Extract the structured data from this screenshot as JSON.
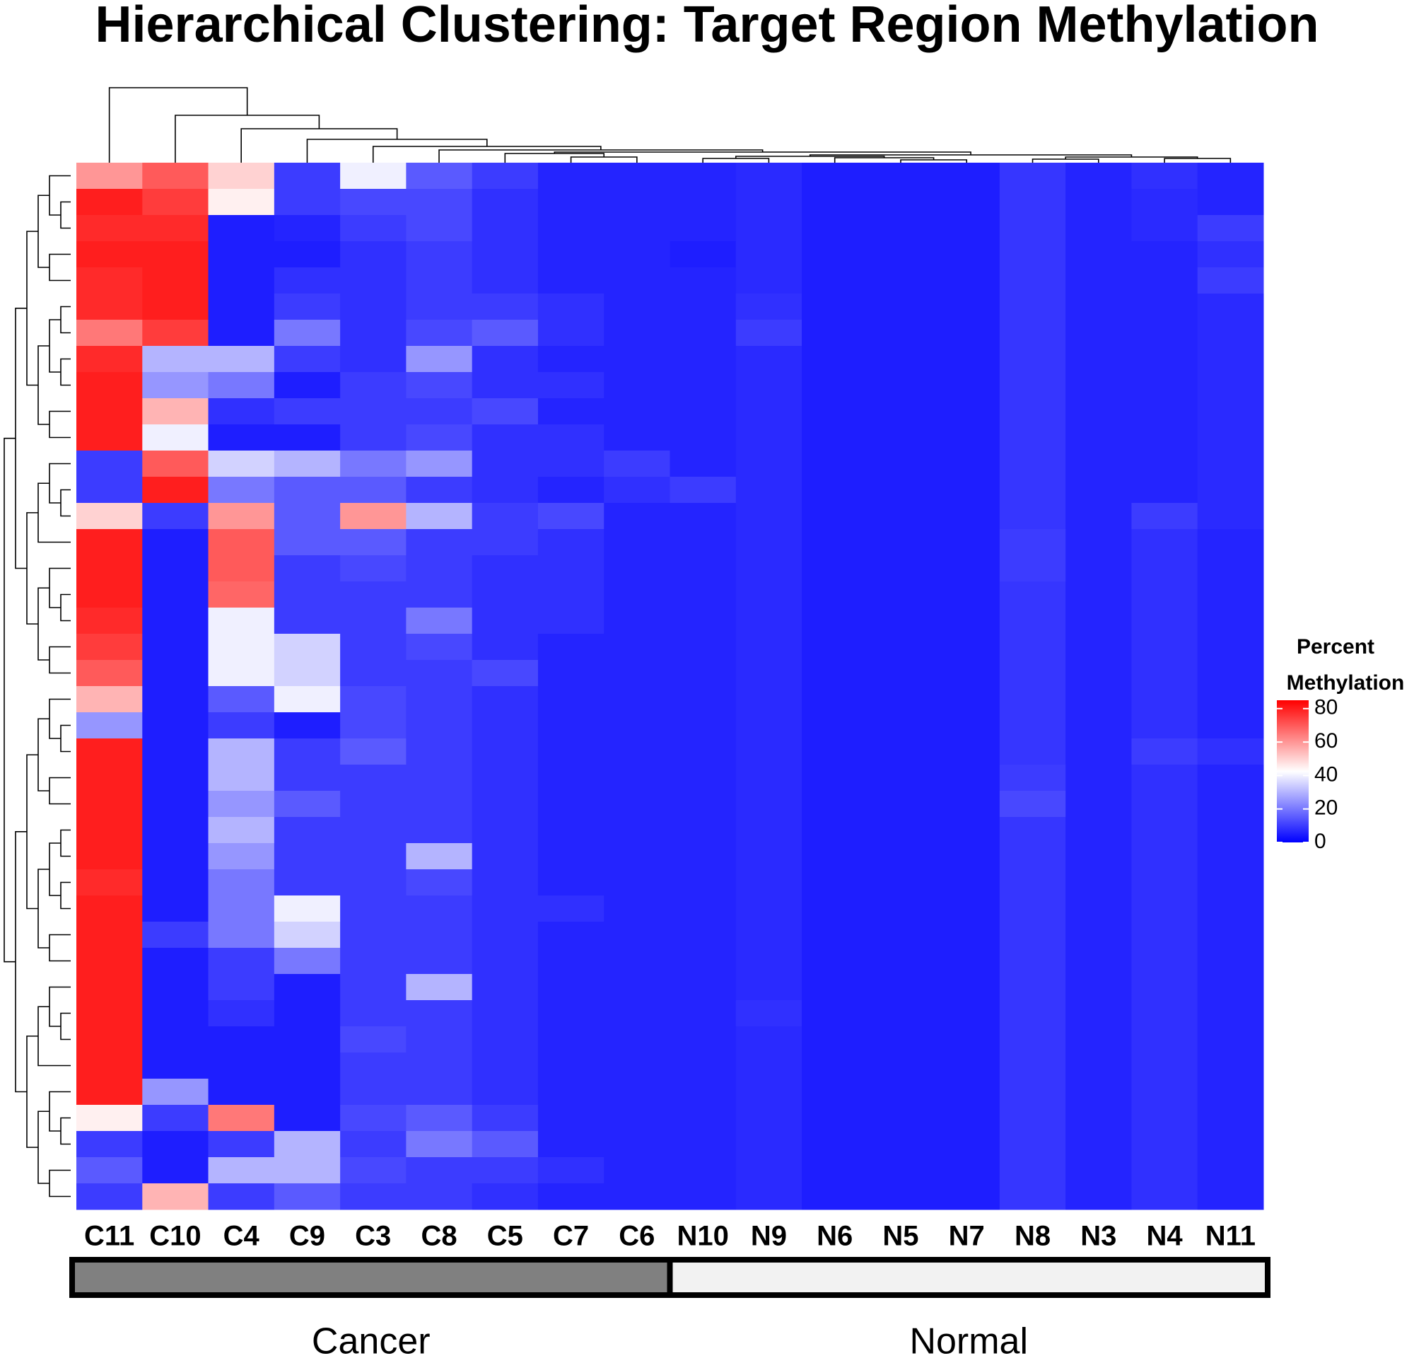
{
  "chart_data": {
    "type": "heatmap",
    "title": "Hierarchical Clustering: Target Region Methylation",
    "categories": [
      "C11",
      "C10",
      "C4",
      "C9",
      "C3",
      "C8",
      "C5",
      "C7",
      "C6",
      "N10",
      "N9",
      "N6",
      "N5",
      "N7",
      "N8",
      "N3",
      "N4",
      "N11"
    ],
    "groups": [
      {
        "label": "Cancer",
        "color": "#808080",
        "size": 9
      },
      {
        "label": "Normal",
        "color": "#f2f2f2",
        "size": 9
      }
    ],
    "legend_title": [
      "Percent",
      "Methylation"
    ],
    "clim": [
      0,
      85
    ],
    "cticks": [
      0,
      20,
      40,
      60,
      80
    ],
    "colors": [
      "#0000ff",
      "#ffffff",
      "#ff0000"
    ],
    "values": [
      [
        60,
        70,
        50,
        10,
        40,
        15,
        10,
        6,
        6,
        6,
        7,
        5,
        5,
        5,
        9,
        6,
        8,
        6
      ],
      [
        80,
        75,
        45,
        10,
        12,
        12,
        8,
        6,
        6,
        6,
        7,
        5,
        5,
        5,
        9,
        6,
        7,
        6
      ],
      [
        78,
        78,
        5,
        6,
        10,
        12,
        8,
        6,
        6,
        6,
        7,
        5,
        5,
        5,
        9,
        6,
        7,
        10
      ],
      [
        80,
        80,
        5,
        5,
        8,
        10,
        8,
        6,
        6,
        5,
        7,
        5,
        5,
        5,
        9,
        6,
        6,
        8
      ],
      [
        78,
        80,
        5,
        8,
        8,
        10,
        8,
        6,
        6,
        6,
        7,
        5,
        5,
        5,
        9,
        6,
        6,
        10
      ],
      [
        78,
        80,
        5,
        10,
        8,
        10,
        10,
        8,
        6,
        6,
        8,
        5,
        5,
        5,
        9,
        6,
        6,
        7
      ],
      [
        65,
        75,
        5,
        20,
        8,
        12,
        15,
        8,
        6,
        6,
        10,
        5,
        5,
        5,
        9,
        6,
        6,
        7
      ],
      [
        78,
        30,
        30,
        10,
        8,
        25,
        8,
        6,
        6,
        6,
        7,
        5,
        5,
        5,
        9,
        6,
        6,
        7
      ],
      [
        80,
        25,
        20,
        5,
        10,
        12,
        8,
        8,
        6,
        6,
        7,
        5,
        5,
        5,
        9,
        6,
        6,
        7
      ],
      [
        80,
        55,
        8,
        10,
        10,
        10,
        12,
        6,
        6,
        6,
        7,
        5,
        5,
        5,
        9,
        6,
        6,
        7
      ],
      [
        80,
        40,
        5,
        5,
        10,
        12,
        8,
        8,
        6,
        6,
        7,
        5,
        5,
        5,
        9,
        6,
        6,
        7
      ],
      [
        10,
        70,
        35,
        30,
        20,
        25,
        8,
        8,
        10,
        6,
        7,
        5,
        5,
        5,
        9,
        6,
        6,
        7
      ],
      [
        10,
        80,
        20,
        15,
        15,
        10,
        8,
        6,
        8,
        10,
        7,
        5,
        5,
        5,
        9,
        6,
        6,
        7
      ],
      [
        50,
        10,
        60,
        15,
        60,
        30,
        10,
        12,
        6,
        6,
        7,
        5,
        5,
        5,
        9,
        6,
        10,
        7
      ],
      [
        80,
        5,
        70,
        15,
        15,
        10,
        10,
        8,
        6,
        6,
        7,
        5,
        5,
        5,
        10,
        6,
        8,
        6
      ],
      [
        80,
        5,
        70,
        10,
        12,
        10,
        8,
        8,
        6,
        6,
        7,
        5,
        5,
        5,
        10,
        6,
        8,
        6
      ],
      [
        80,
        5,
        68,
        10,
        10,
        10,
        8,
        8,
        6,
        6,
        7,
        5,
        5,
        5,
        9,
        6,
        8,
        6
      ],
      [
        78,
        5,
        40,
        10,
        10,
        20,
        8,
        8,
        6,
        6,
        7,
        5,
        5,
        5,
        9,
        6,
        8,
        6
      ],
      [
        75,
        5,
        40,
        35,
        10,
        12,
        8,
        6,
        6,
        6,
        7,
        5,
        5,
        5,
        9,
        6,
        8,
        6
      ],
      [
        70,
        5,
        40,
        35,
        10,
        10,
        12,
        6,
        6,
        6,
        7,
        5,
        5,
        5,
        9,
        6,
        8,
        6
      ],
      [
        55,
        5,
        15,
        40,
        12,
        10,
        8,
        6,
        6,
        6,
        7,
        5,
        5,
        5,
        9,
        6,
        8,
        6
      ],
      [
        25,
        5,
        10,
        5,
        12,
        10,
        8,
        6,
        6,
        6,
        7,
        5,
        5,
        5,
        9,
        6,
        8,
        6
      ],
      [
        80,
        5,
        30,
        10,
        15,
        10,
        8,
        6,
        6,
        6,
        7,
        5,
        5,
        5,
        9,
        6,
        10,
        8
      ],
      [
        80,
        5,
        30,
        10,
        10,
        10,
        8,
        6,
        6,
        6,
        7,
        5,
        5,
        5,
        10,
        6,
        8,
        6
      ],
      [
        80,
        5,
        25,
        15,
        10,
        10,
        8,
        6,
        6,
        6,
        7,
        5,
        5,
        5,
        12,
        6,
        8,
        6
      ],
      [
        80,
        5,
        30,
        10,
        10,
        10,
        8,
        6,
        6,
        6,
        7,
        5,
        5,
        5,
        9,
        6,
        8,
        6
      ],
      [
        80,
        5,
        25,
        10,
        10,
        30,
        8,
        6,
        6,
        6,
        7,
        5,
        5,
        5,
        9,
        6,
        8,
        6
      ],
      [
        78,
        5,
        20,
        10,
        10,
        12,
        8,
        6,
        6,
        6,
        7,
        5,
        5,
        5,
        9,
        6,
        8,
        6
      ],
      [
        80,
        5,
        20,
        40,
        10,
        10,
        8,
        8,
        6,
        6,
        7,
        5,
        5,
        5,
        9,
        6,
        8,
        6
      ],
      [
        80,
        10,
        20,
        35,
        10,
        10,
        8,
        6,
        6,
        6,
        7,
        5,
        5,
        5,
        9,
        6,
        8,
        6
      ],
      [
        80,
        5,
        10,
        20,
        10,
        10,
        8,
        6,
        6,
        6,
        7,
        5,
        5,
        5,
        9,
        6,
        8,
        6
      ],
      [
        80,
        5,
        10,
        5,
        10,
        30,
        8,
        6,
        6,
        6,
        7,
        5,
        5,
        5,
        9,
        6,
        8,
        6
      ],
      [
        80,
        5,
        8,
        5,
        10,
        10,
        8,
        6,
        6,
        6,
        8,
        5,
        5,
        5,
        9,
        6,
        8,
        6
      ],
      [
        80,
        5,
        5,
        5,
        12,
        10,
        8,
        6,
        6,
        6,
        7,
        5,
        5,
        5,
        9,
        6,
        8,
        6
      ],
      [
        80,
        5,
        5,
        5,
        10,
        10,
        8,
        6,
        6,
        6,
        7,
        5,
        5,
        5,
        9,
        6,
        8,
        6
      ],
      [
        80,
        25,
        5,
        5,
        10,
        10,
        8,
        6,
        6,
        6,
        7,
        5,
        5,
        5,
        9,
        6,
        8,
        6
      ],
      [
        45,
        10,
        65,
        5,
        12,
        15,
        10,
        6,
        6,
        6,
        7,
        5,
        5,
        5,
        9,
        6,
        8,
        6
      ],
      [
        10,
        5,
        10,
        30,
        10,
        20,
        15,
        6,
        6,
        6,
        7,
        5,
        5,
        5,
        9,
        6,
        8,
        6
      ],
      [
        15,
        5,
        30,
        30,
        12,
        10,
        10,
        8,
        6,
        6,
        7,
        5,
        5,
        5,
        9,
        6,
        8,
        6
      ],
      [
        10,
        55,
        10,
        15,
        10,
        10,
        8,
        6,
        6,
        6,
        7,
        5,
        5,
        5,
        9,
        6,
        8,
        6
      ]
    ]
  }
}
